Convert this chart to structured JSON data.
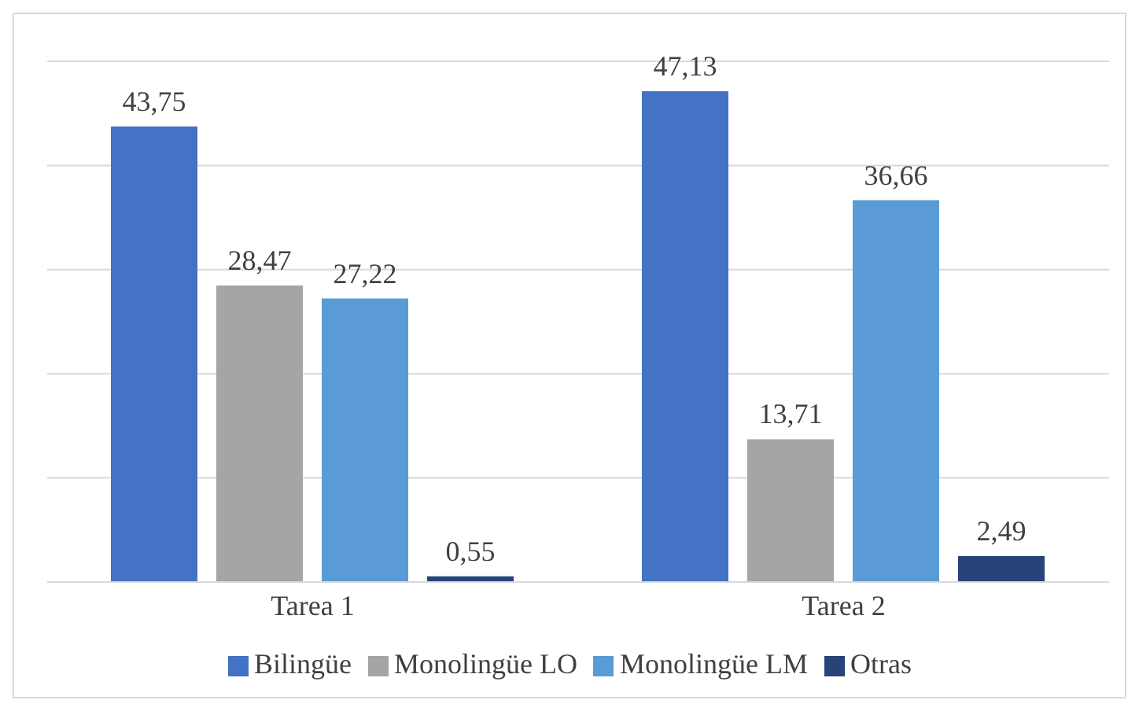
{
  "chart_data": {
    "type": "bar",
    "categories": [
      "Tarea 1",
      "Tarea 2"
    ],
    "series": [
      {
        "name": "Bilingüe",
        "color": "#4472c4",
        "values": [
          43.75,
          47.13
        ],
        "value_labels": [
          "43,75",
          "47,13"
        ]
      },
      {
        "name": "Monolingüe LO",
        "color": "#a5a5a5",
        "values": [
          28.47,
          13.71
        ],
        "value_labels": [
          "28,47",
          "13,71"
        ]
      },
      {
        "name": "Monolingüe LM",
        "color": "#5b9bd5",
        "values": [
          27.22,
          36.66
        ],
        "value_labels": [
          "27,22",
          "36,66"
        ]
      },
      {
        "name": "Otras",
        "color": "#264478",
        "values": [
          0.55,
          2.49
        ],
        "value_labels": [
          "0,55",
          "2,49"
        ]
      }
    ],
    "ylim": [
      0,
      50
    ],
    "tick_labels": "x",
    "grid": "y",
    "legend": "bottom"
  }
}
